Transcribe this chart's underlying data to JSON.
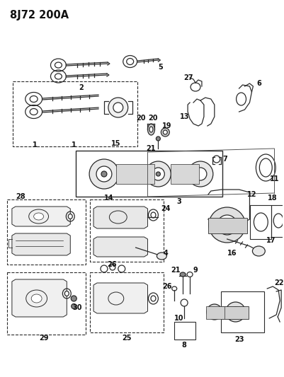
{
  "title": "8J72 200A",
  "bg": "#ffffff",
  "lc": "#2a2a2a",
  "tc": "#111111",
  "fw": 4.02,
  "fh": 5.33,
  "dpi": 100,
  "label_fs": 7.0,
  "header_fs": 10.5
}
